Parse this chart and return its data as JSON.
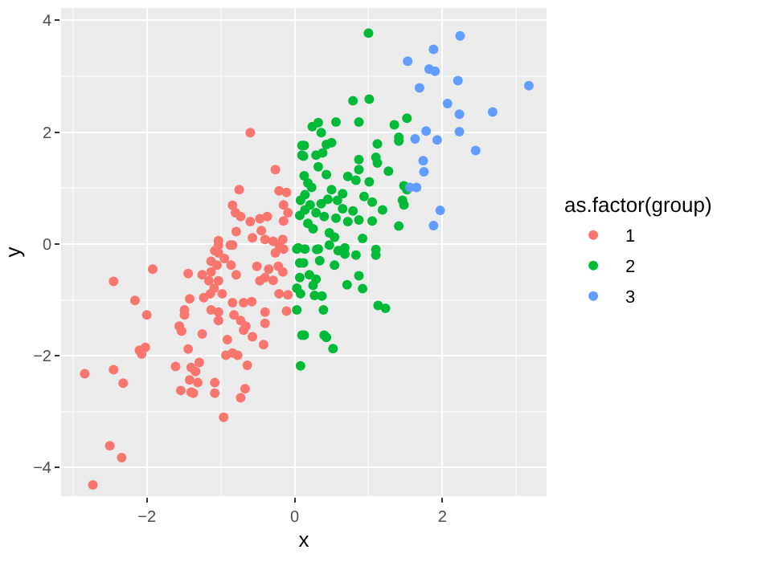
{
  "chart_data": {
    "type": "scatter",
    "xlabel": "x",
    "ylabel": "y",
    "legend_title": "as.factor(group)",
    "legend": "right",
    "grid": true,
    "marker": "circle",
    "xlim": [
      -3.16,
      3.41
    ],
    "ylim": [
      -4.51,
      4.22
    ],
    "xticks": [
      -2,
      0,
      2
    ],
    "yticks": [
      -4,
      -2,
      0,
      2,
      4
    ],
    "series": [
      {
        "name": "1",
        "color": "#f8766d",
        "x": [
          -0.6,
          -0.26,
          -0.75,
          -0.21,
          -0.11,
          -0.84,
          -0.8,
          -0.73,
          -0.15,
          -0.09,
          -0.6,
          -0.47,
          -0.37,
          -0.15,
          -0.79,
          -0.45,
          -0.57,
          -0.4,
          -0.29,
          -0.16,
          -1.03,
          -0.87,
          -0.15,
          -0.26,
          -1.08,
          -1.03,
          -0.84,
          -0.21,
          -1.03,
          -0.95,
          -1.13,
          -1.05,
          -0.86,
          -0.79,
          -1.13,
          -0.51,
          -0.35,
          -0.22,
          -0.16,
          -0.4,
          -0.29,
          -0.47,
          -1.92,
          -1.44,
          -1.25,
          -1.16,
          -1.03,
          -2.45,
          -1.09,
          -1.14,
          -0.98,
          -1.42,
          -1.23,
          -0.84,
          -0.69,
          -0.58,
          -0.21,
          -0.09,
          -2.16,
          -1.49,
          -1.13,
          -1.03,
          -0.4,
          -0.11,
          -2.0,
          -1.49,
          -0.82,
          -1.03,
          -0.73,
          -1.56,
          -0.66,
          -0.4,
          -1.53,
          -1.25,
          -0.69,
          -0.57,
          -0.91,
          -0.42,
          -2.1,
          -2.02,
          -2.07,
          -1.44,
          -0.93,
          -0.84,
          -0.77,
          -1.29,
          -1.61,
          -1.4,
          -1.34,
          -0.64,
          -2.45,
          -2.84,
          -1.42,
          -1.31,
          -2.32,
          -1.08,
          -1.54,
          -1.4,
          -1.37,
          -1.08,
          -0.67,
          -0.73,
          -0.96,
          -2.5,
          -2.34,
          -2.73
        ],
        "values": [
          1.99,
          1.33,
          0.97,
          0.95,
          0.92,
          0.69,
          0.56,
          0.49,
          0.7,
          0.56,
          0.4,
          0.45,
          0.49,
          0.41,
          0.22,
          0.24,
          0.11,
          0.08,
          0.05,
          0.08,
          0.06,
          -0.02,
          -0.09,
          -0.16,
          -0.12,
          -0.02,
          -0.02,
          -0.02,
          -0.16,
          -0.26,
          -0.31,
          -0.38,
          -0.38,
          -0.55,
          -0.5,
          -0.4,
          -0.45,
          -0.4,
          -0.5,
          -0.6,
          -0.65,
          -0.66,
          -0.45,
          -0.53,
          -0.55,
          -0.66,
          -0.66,
          -0.67,
          -0.79,
          -0.89,
          -0.89,
          -0.98,
          -0.96,
          -1.05,
          -1.05,
          -1.03,
          -0.89,
          -0.91,
          -1.01,
          -1.18,
          -1.18,
          -1.22,
          -1.22,
          -1.2,
          -1.27,
          -1.27,
          -1.27,
          -1.37,
          -1.37,
          -1.47,
          -1.47,
          -1.42,
          -1.56,
          -1.61,
          -1.54,
          -1.66,
          -1.71,
          -1.8,
          -1.9,
          -1.85,
          -1.97,
          -1.88,
          -1.99,
          -1.95,
          -1.99,
          -2.12,
          -2.19,
          -2.21,
          -2.28,
          -2.17,
          -2.25,
          -2.32,
          -2.43,
          -2.48,
          -2.49,
          -2.48,
          -2.62,
          -2.65,
          -2.67,
          -2.67,
          -2.59,
          -2.75,
          -3.1,
          -3.61,
          -3.82,
          -4.31
        ]
      },
      {
        "name": "2",
        "color": "#00ba38",
        "x": [
          1.0,
          0.79,
          1.01,
          1.52,
          0.24,
          0.32,
          0.36,
          0.56,
          0.87,
          1.35,
          1.41,
          1.41,
          0.13,
          0.43,
          0.5,
          1.12,
          0.12,
          0.29,
          0.38,
          0.87,
          1.1,
          1.12,
          0.32,
          1.27,
          0.13,
          0.43,
          0.72,
          0.87,
          0.18,
          0.23,
          0.83,
          1.01,
          1.48,
          1.52,
          0.5,
          0.65,
          0.14,
          0.94,
          0.45,
          0.58,
          0.21,
          0.36,
          1.05,
          1.46,
          1.48,
          0.14,
          0.29,
          0.65,
          0.79,
          1.19,
          0.07,
          0.4,
          0.56,
          0.72,
          0.87,
          1.05,
          0.18,
          0.25,
          0.47,
          0.54,
          0.92,
          1.41,
          0.05,
          0.14,
          0.32,
          0.68,
          1.1,
          0.1,
          0.1,
          0.08,
          0.03,
          0.3,
          0.47,
          0.59,
          0.68,
          0.83,
          1.1,
          0.12,
          0.34,
          0.54,
          0.2,
          0.07,
          0.29,
          0.87,
          0.25,
          0.71,
          0.92,
          0.03,
          0.08,
          0.27,
          0.37,
          1.13,
          1.23,
          0.03,
          0.39,
          0.13,
          0.4,
          0.43,
          0.52,
          0.08,
          0.07,
          0.1
        ],
        "values": [
          3.77,
          2.56,
          2.59,
          2.25,
          2.1,
          2.17,
          1.99,
          2.18,
          2.18,
          2.13,
          1.91,
          1.84,
          1.76,
          1.78,
          1.81,
          1.79,
          1.57,
          1.59,
          1.63,
          1.51,
          1.55,
          1.45,
          1.38,
          1.3,
          1.22,
          1.24,
          1.21,
          1.33,
          1.09,
          1.01,
          1.14,
          1.11,
          1.04,
          0.97,
          0.97,
          0.9,
          0.88,
          0.85,
          0.8,
          0.78,
          0.7,
          0.72,
          0.75,
          0.78,
          0.7,
          0.61,
          0.56,
          0.63,
          0.59,
          0.61,
          0.51,
          0.49,
          0.46,
          0.4,
          0.43,
          0.41,
          0.37,
          0.27,
          0.2,
          0.12,
          0.1,
          0.32,
          -0.07,
          -0.09,
          -0.09,
          -0.07,
          -0.1,
          1.76,
          1.59,
          0.78,
          -0.09,
          -0.1,
          -0.02,
          -0.12,
          -0.18,
          -0.2,
          -0.2,
          -0.34,
          -0.3,
          -0.38,
          -0.55,
          -0.6,
          -0.63,
          -0.57,
          -0.74,
          -0.73,
          -0.8,
          -0.79,
          -0.89,
          -0.92,
          -0.93,
          -1.1,
          -1.15,
          -1.18,
          -1.18,
          -1.63,
          -1.63,
          -1.67,
          -1.87,
          -2.18,
          -0.34,
          -1.63
        ]
      },
      {
        "name": "3",
        "color": "#619cff",
        "x": [
          2.24,
          1.88,
          1.53,
          1.82,
          1.9,
          2.21,
          3.17,
          1.69,
          2.07,
          2.23,
          2.68,
          1.78,
          2.23,
          1.63,
          1.93,
          2.45,
          1.74,
          1.75,
          1.56,
          1.65,
          1.97,
          1.88
        ],
        "values": [
          3.72,
          3.48,
          3.27,
          3.13,
          3.09,
          2.92,
          2.83,
          2.79,
          2.51,
          2.32,
          2.36,
          2.02,
          2.01,
          1.88,
          1.86,
          1.67,
          1.49,
          1.29,
          1.01,
          1.01,
          0.6,
          0.33
        ]
      }
    ]
  }
}
